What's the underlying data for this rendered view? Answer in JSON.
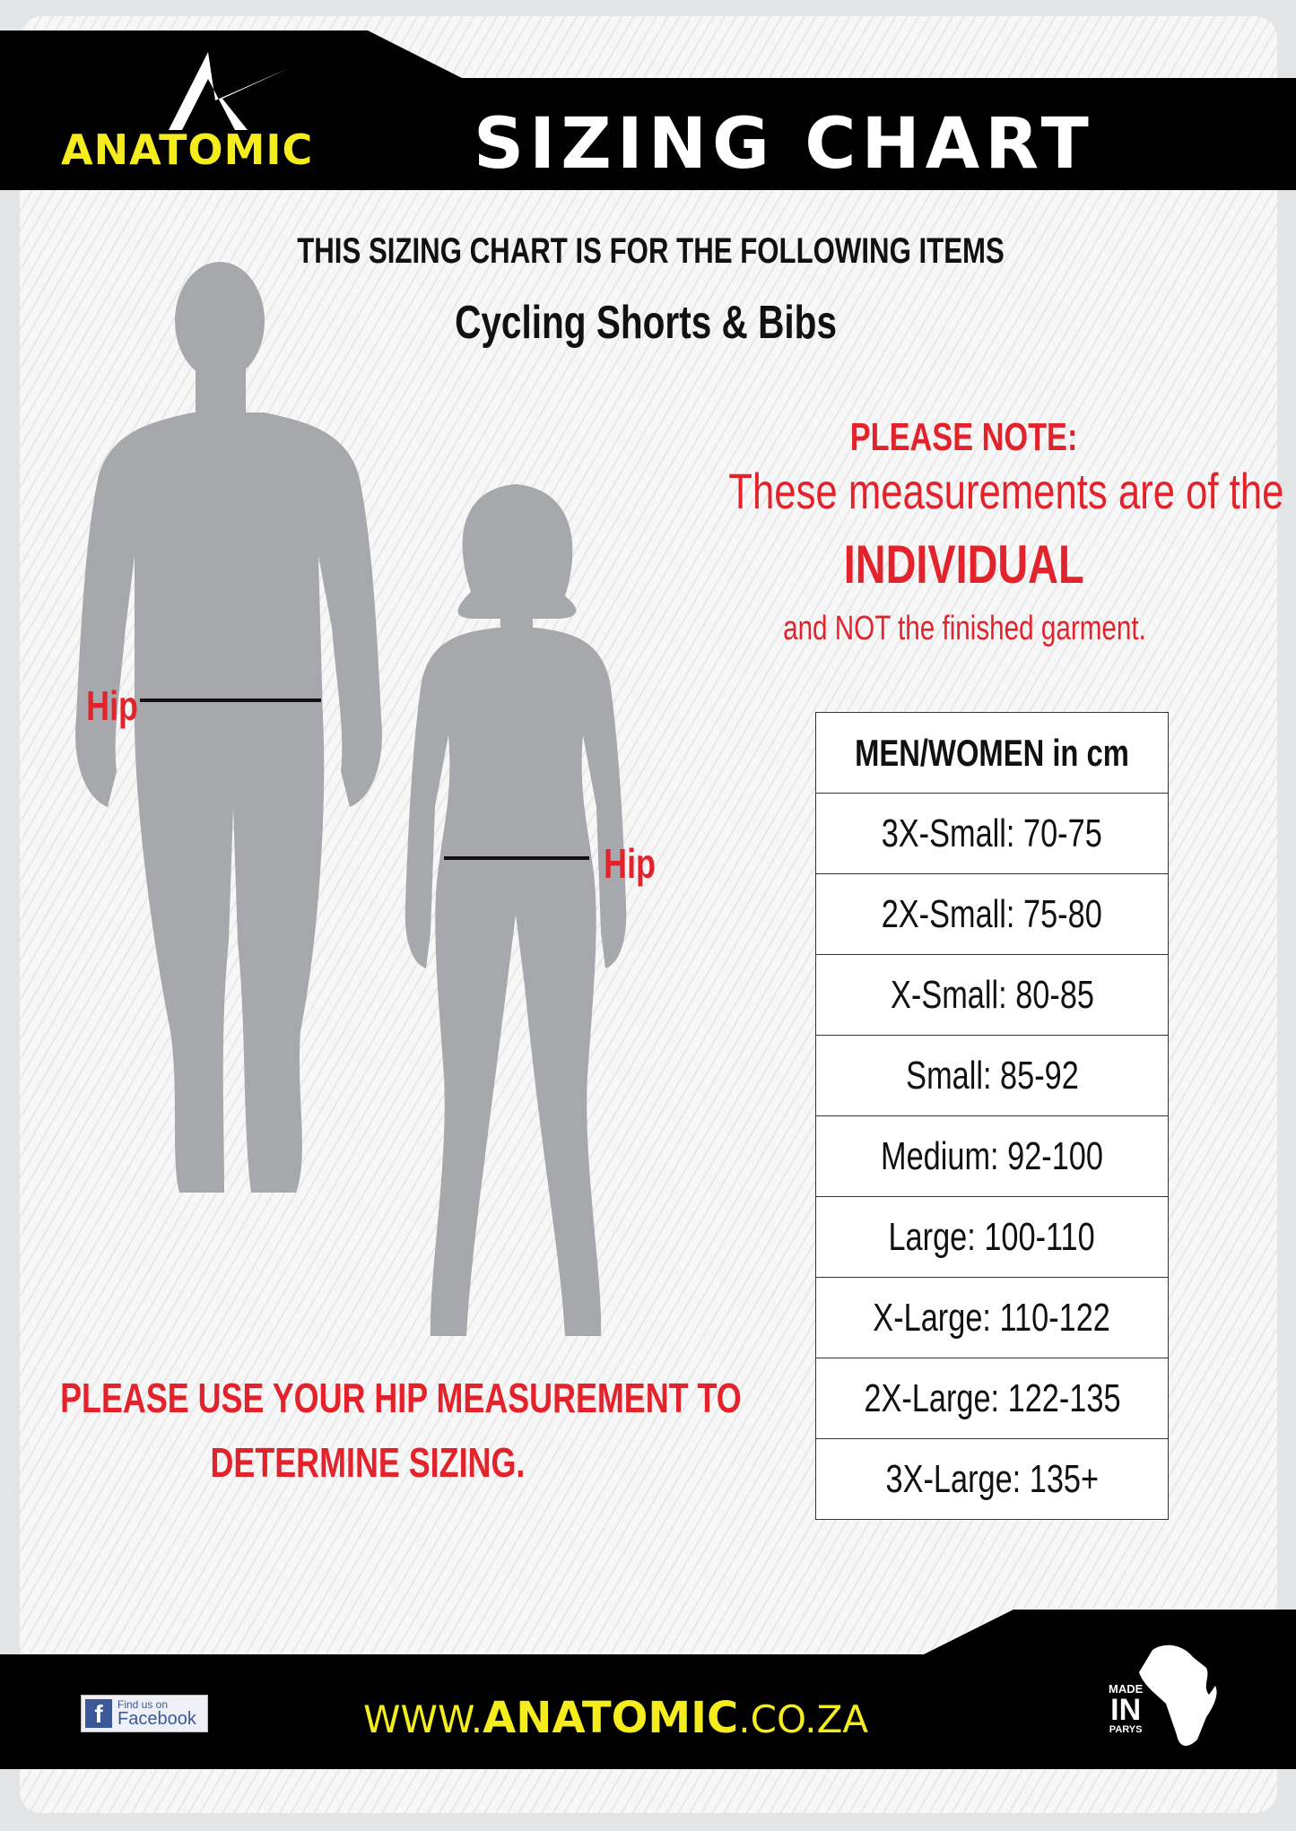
{
  "header": {
    "brand": "ANATOMIC",
    "title": "SIZING CHART"
  },
  "intro": {
    "line1": "THIS SIZING CHART IS FOR THE FOLLOWING ITEMS",
    "items": "Cycling Shorts & Bibs"
  },
  "note": {
    "heading": "PLEASE NOTE:",
    "line1": "These measurements are of the",
    "emphasis": "INDIVIDUAL",
    "line2": "and NOT the finished garment."
  },
  "figures": {
    "men_label": "Hip",
    "women_label": "Hip"
  },
  "instruction": {
    "line1": "PLEASE USE YOUR HIP MEASUREMENT TO",
    "line2": "DETERMINE SIZING."
  },
  "size_table": {
    "header": "MEN/WOMEN in cm",
    "rows": [
      "3X-Small: 70-75",
      "2X-Small: 75-80",
      "X-Small: 80-85",
      "Small: 85-92",
      "Medium: 92-100",
      "Large: 100-110",
      "X-Large: 110-122",
      "2X-Large: 122-135",
      "3X-Large: 135+"
    ]
  },
  "footer": {
    "facebook_small": "Find us on",
    "facebook_big": "Facebook",
    "url_prefix": "WWW.",
    "url_brand": "ANATOMIC",
    "url_suffix": ".CO.ZA",
    "badge_top": "MADE",
    "badge_mid": "IN",
    "badge_bottom": "PARYS"
  },
  "colors": {
    "accent_yellow": "#f4ec1d",
    "accent_red": "#e3232c",
    "silhouette": "#a7a8ab",
    "band": "#000000"
  }
}
